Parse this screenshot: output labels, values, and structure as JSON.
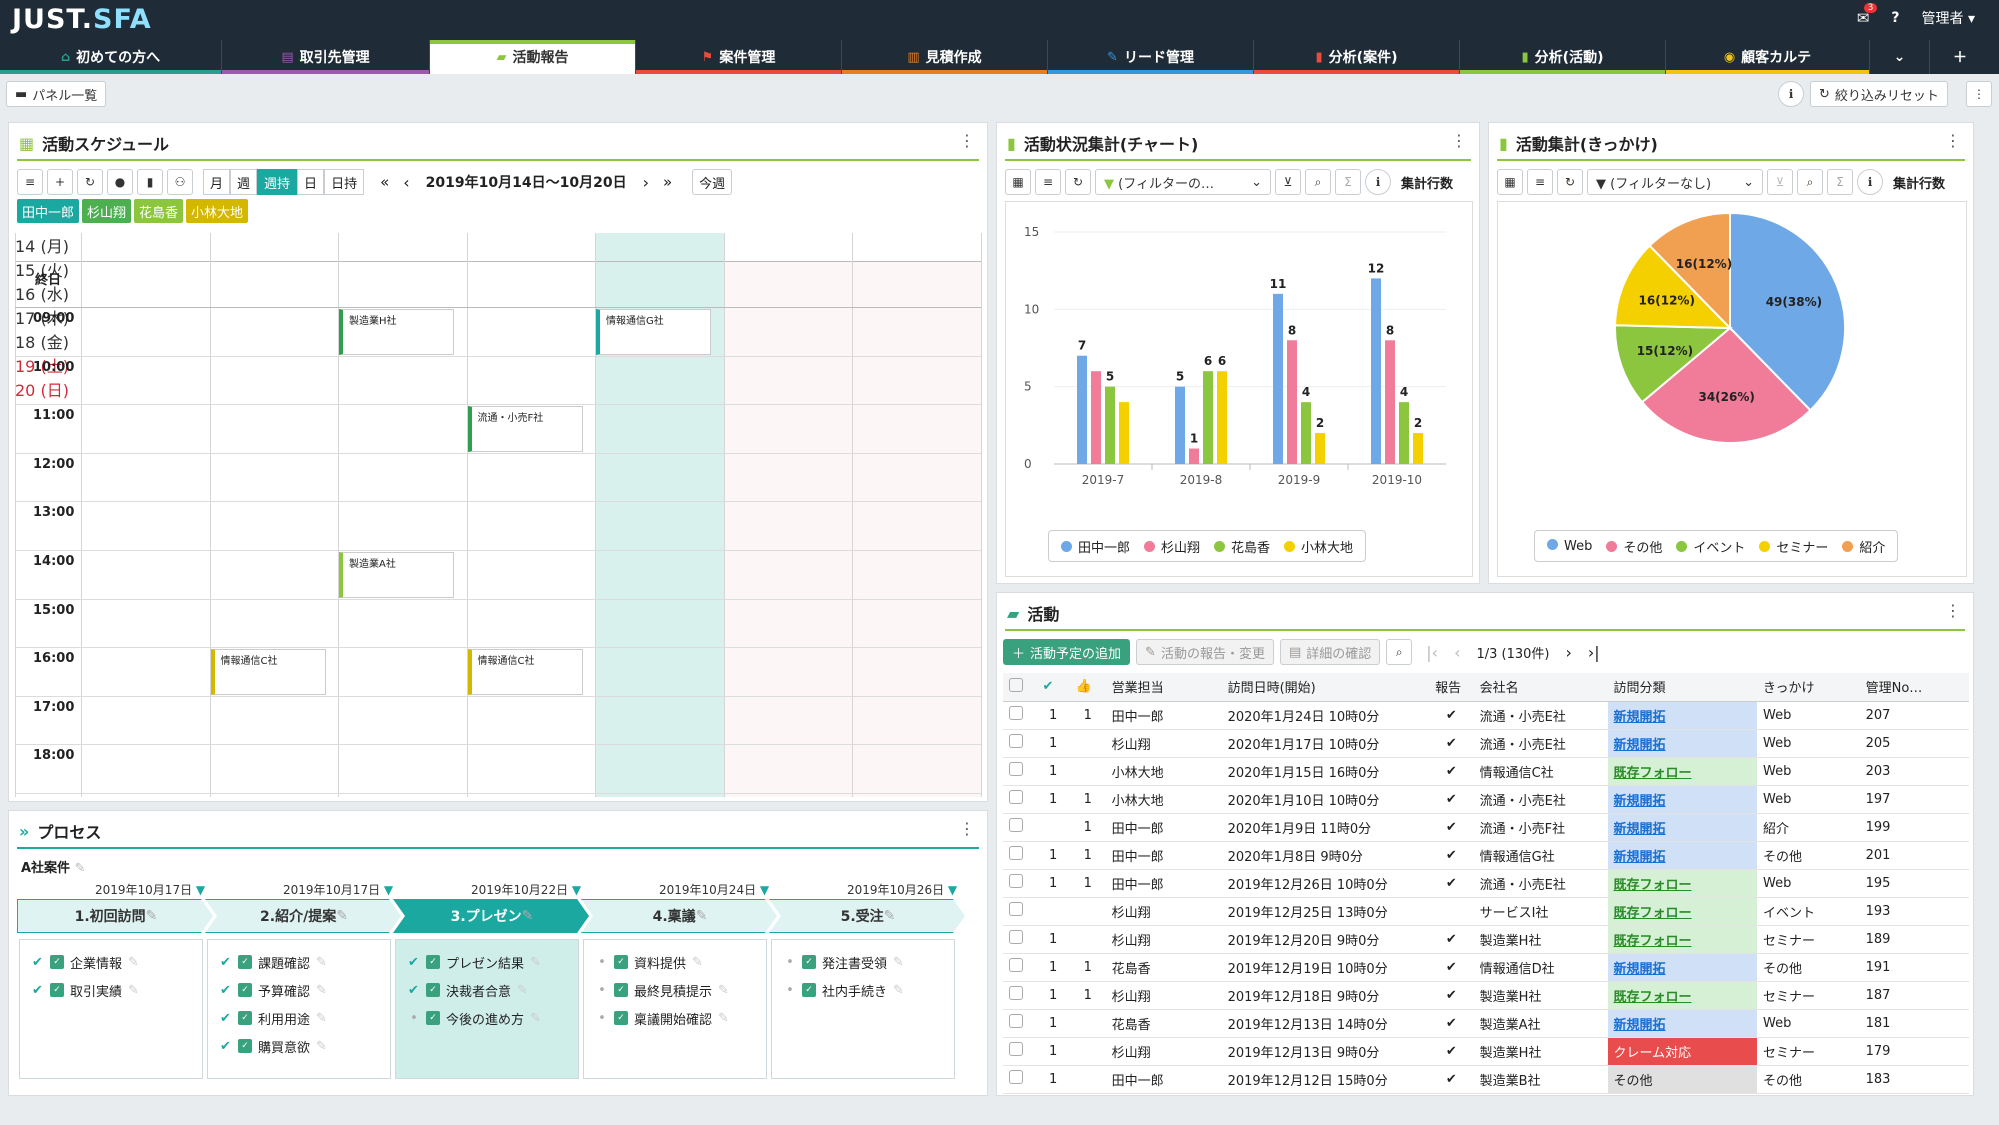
{
  "app": {
    "logo_main": "JUST.",
    "logo_sub": "SFA",
    "notif_count": "3",
    "help": "?",
    "user": "管理者"
  },
  "tabs": [
    {
      "label": "初めての方へ",
      "icon": "⌂",
      "color": "#2a9d8f"
    },
    {
      "label": "取引先管理",
      "icon": "▤",
      "color": "#9b59b6"
    },
    {
      "label": "活動報告",
      "icon": "▰",
      "color": "#8cc63f"
    },
    {
      "label": "案件管理",
      "icon": "⚑",
      "color": "#e74c3c"
    },
    {
      "label": "見積作成",
      "icon": "▥",
      "color": "#e67e22"
    },
    {
      "label": "リード管理",
      "icon": "✎",
      "color": "#3498db"
    },
    {
      "label": "分析(案件)",
      "icon": "▮",
      "color": "#e74c3c"
    },
    {
      "label": "分析(活動)",
      "icon": "▮",
      "color": "#8cc63f"
    },
    {
      "label": "顧客カルテ",
      "icon": "◉",
      "color": "#f1c40f"
    }
  ],
  "subbar": {
    "panel_list": "パネル一覧",
    "reset": "絞り込みリセット"
  },
  "schedule": {
    "title": "活動スケジュール",
    "views": [
      "月",
      "週",
      "週持",
      "日",
      "日持"
    ],
    "active_view": "週持",
    "range": "2019年10月14日〜10月20日",
    "this_week": "今週",
    "people": [
      {
        "name": "田中一郎",
        "color": "#1aa8a0"
      },
      {
        "name": "杉山翔",
        "color": "#4caf50"
      },
      {
        "name": "花島香",
        "color": "#8cc63f"
      },
      {
        "name": "小林大地",
        "color": "#d4b800"
      }
    ],
    "days": [
      {
        "label": "14 (月)",
        "weekend": false
      },
      {
        "label": "15 (火)",
        "weekend": false
      },
      {
        "label": "16 (水)",
        "weekend": false
      },
      {
        "label": "17 (木)",
        "weekend": false
      },
      {
        "label": "18 (金)",
        "weekend": false,
        "today": true
      },
      {
        "label": "19 (土)",
        "weekend": true
      },
      {
        "label": "20 (日)",
        "weekend": true
      }
    ],
    "allday": "終日",
    "times": [
      "09:00",
      "10:00",
      "11:00",
      "12:00",
      "13:00",
      "14:00",
      "15:00",
      "16:00",
      "17:00",
      "18:00"
    ],
    "events": [
      {
        "day": 2,
        "slot": 0,
        "label": "製造業H社",
        "color": "#2e9e4f"
      },
      {
        "day": 4,
        "slot": 0,
        "label": "情報通信G社",
        "color": "#1aa8a0"
      },
      {
        "day": 3,
        "slot": 2,
        "label": "流通・小売F社",
        "color": "#2e9e4f"
      },
      {
        "day": 2,
        "slot": 5,
        "label": "製造業A社",
        "color": "#8cc63f"
      },
      {
        "day": 1,
        "slot": 7,
        "label": "情報通信C社",
        "color": "#d4b800"
      },
      {
        "day": 3,
        "slot": 7,
        "label": "情報通信C社",
        "color": "#d4b800"
      }
    ]
  },
  "chart1": {
    "title": "活動状況集計(チャート)",
    "filter": "(フィルターの…",
    "count": "集計行数"
  },
  "chart2": {
    "title": "活動集計(きっかけ)",
    "filter": "(フィルターなし)",
    "count": "集計行数"
  },
  "chart_data": [
    {
      "type": "bar",
      "categories": [
        "2019-7",
        "2019-8",
        "2019-9",
        "2019-10"
      ],
      "series": [
        {
          "name": "田中一郎",
          "color": "#6fa8e6",
          "values": [
            7,
            5,
            11,
            12
          ]
        },
        {
          "name": "杉山翔",
          "color": "#f07c9a",
          "values": [
            6,
            1,
            8,
            8
          ]
        },
        {
          "name": "花島香",
          "color": "#8cc63f",
          "values": [
            5,
            6,
            4,
            4
          ]
        },
        {
          "name": "小林大地",
          "color": "#f5d000",
          "values": [
            4,
            6,
            2,
            2
          ]
        }
      ],
      "ylim": [
        0,
        15
      ],
      "yticks": [
        0,
        5,
        10,
        15
      ],
      "labels": [
        [
          7,
          6,
          5,
          4
        ],
        [
          5,
          1,
          6,
          6
        ],
        [
          11,
          8,
          4,
          2
        ],
        [
          12,
          8,
          4,
          2
        ]
      ],
      "label_show": [
        [
          true,
          false,
          true,
          false
        ],
        [
          true,
          true,
          true,
          true
        ],
        [
          true,
          true,
          true,
          true
        ],
        [
          true,
          true,
          true,
          true
        ]
      ]
    },
    {
      "type": "pie",
      "slices": [
        {
          "name": "Web",
          "value": 49,
          "label": "49(38%)",
          "color": "#6fa8e6"
        },
        {
          "name": "その他",
          "value": 34,
          "label": "34(26%)",
          "color": "#f07c9a"
        },
        {
          "name": "イベント",
          "value": 15,
          "label": "15(12%)",
          "color": "#8cc63f"
        },
        {
          "name": "セミナー",
          "value": 16,
          "label": "16(12%)",
          "color": "#f5d000"
        },
        {
          "name": "紹介",
          "value": 16,
          "label": "16(12%)",
          "color": "#f0a050"
        }
      ]
    }
  ],
  "process": {
    "title": "プロセス",
    "deal": "A社案件",
    "steps": [
      {
        "label": "1.初回訪問",
        "date": "2019年10月17日",
        "items": [
          {
            "t": "企業情報",
            "done": true
          },
          {
            "t": "取引実績",
            "done": true
          }
        ]
      },
      {
        "label": "2.紹介/提案",
        "date": "2019年10月17日",
        "items": [
          {
            "t": "課題確認",
            "done": true
          },
          {
            "t": "予算確認",
            "done": true
          },
          {
            "t": "利用用途",
            "done": true
          },
          {
            "t": "購買意欲",
            "done": true
          }
        ]
      },
      {
        "label": "3.プレゼン",
        "date": "2019年10月22日",
        "items": [
          {
            "t": "プレゼン結果",
            "done": true
          },
          {
            "t": "決裁者合意",
            "done": true
          },
          {
            "t": "今後の進め方",
            "done": false
          }
        ],
        "active": true
      },
      {
        "label": "4.稟議",
        "date": "2019年10月24日",
        "items": [
          {
            "t": "資料提供",
            "done": false
          },
          {
            "t": "最終見積提示",
            "done": false
          },
          {
            "t": "稟議開始確認",
            "done": false
          }
        ]
      },
      {
        "label": "5.受注",
        "date": "2019年10月26日",
        "items": [
          {
            "t": "発注書受領",
            "done": false
          },
          {
            "t": "社内手続き",
            "done": false
          }
        ]
      }
    ]
  },
  "activity": {
    "title": "活動",
    "add": "活動予定の追加",
    "report": "活動の報告・変更",
    "detail": "詳細の確認",
    "pager": "1/3 (130件)",
    "columns": [
      "営業担当",
      "訪問日時(開始)",
      "報告",
      "会社名",
      "訪問分類",
      "きっかけ",
      "管理No…"
    ],
    "rows": [
      {
        "a": "1",
        "b": "1",
        "rep": "田中一郎",
        "dt": "2020年1月24日 10時0分",
        "ok": "✔",
        "co": "流通・小売E社",
        "cat": "新規開拓",
        "cc": "new",
        "src": "Web",
        "no": "207"
      },
      {
        "a": "1",
        "b": "",
        "rep": "杉山翔",
        "dt": "2020年1月17日 10時0分",
        "ok": "✔",
        "co": "流通・小売E社",
        "cat": "新規開拓",
        "cc": "new",
        "src": "Web",
        "no": "205"
      },
      {
        "a": "1",
        "b": "",
        "rep": "小林大地",
        "dt": "2020年1月15日 16時0分",
        "ok": "✔",
        "co": "情報通信C社",
        "cat": "既存フォロー",
        "cc": "old",
        "src": "Web",
        "no": "203"
      },
      {
        "a": "1",
        "b": "1",
        "rep": "小林大地",
        "dt": "2020年1月10日 10時0分",
        "ok": "✔",
        "co": "流通・小売E社",
        "cat": "新規開拓",
        "cc": "new",
        "src": "Web",
        "no": "197"
      },
      {
        "a": "",
        "b": "1",
        "rep": "田中一郎",
        "dt": "2020年1月9日 11時0分",
        "ok": "✔",
        "co": "流通・小売F社",
        "cat": "新規開拓",
        "cc": "new",
        "src": "紹介",
        "no": "199"
      },
      {
        "a": "1",
        "b": "1",
        "rep": "田中一郎",
        "dt": "2020年1月8日 9時0分",
        "ok": "✔",
        "co": "情報通信G社",
        "cat": "新規開拓",
        "cc": "new",
        "src": "その他",
        "no": "201"
      },
      {
        "a": "1",
        "b": "1",
        "rep": "田中一郎",
        "dt": "2019年12月26日 10時0分",
        "ok": "✔",
        "co": "流通・小売E社",
        "cat": "既存フォロー",
        "cc": "old",
        "src": "Web",
        "no": "195"
      },
      {
        "a": "",
        "b": "",
        "rep": "杉山翔",
        "dt": "2019年12月25日 13時0分",
        "ok": "",
        "co": "サービスI社",
        "cat": "既存フォロー",
        "cc": "old",
        "src": "イベント",
        "no": "193"
      },
      {
        "a": "1",
        "b": "",
        "rep": "杉山翔",
        "dt": "2019年12月20日 9時0分",
        "ok": "✔",
        "co": "製造業H社",
        "cat": "既存フォロー",
        "cc": "old",
        "src": "セミナー",
        "no": "189"
      },
      {
        "a": "1",
        "b": "1",
        "rep": "花島香",
        "dt": "2019年12月19日 10時0分",
        "ok": "✔",
        "co": "情報通信D社",
        "cat": "新規開拓",
        "cc": "new",
        "src": "その他",
        "no": "191"
      },
      {
        "a": "1",
        "b": "1",
        "rep": "杉山翔",
        "dt": "2019年12月18日 9時0分",
        "ok": "✔",
        "co": "製造業H社",
        "cat": "既存フォロー",
        "cc": "old",
        "src": "セミナー",
        "no": "187"
      },
      {
        "a": "1",
        "b": "",
        "rep": "花島香",
        "dt": "2019年12月13日 14時0分",
        "ok": "✔",
        "co": "製造業A社",
        "cat": "新規開拓",
        "cc": "new",
        "src": "Web",
        "no": "181"
      },
      {
        "a": "1",
        "b": "",
        "rep": "杉山翔",
        "dt": "2019年12月13日 9時0分",
        "ok": "✔",
        "co": "製造業H社",
        "cat": "クレーム対応",
        "cc": "cl",
        "src": "セミナー",
        "no": "179"
      },
      {
        "a": "1",
        "b": "",
        "rep": "田中一郎",
        "dt": "2019年12月12日 15時0分",
        "ok": "✔",
        "co": "製造業B社",
        "cat": "その他",
        "cc": "ot",
        "src": "その他",
        "no": "183"
      }
    ]
  }
}
